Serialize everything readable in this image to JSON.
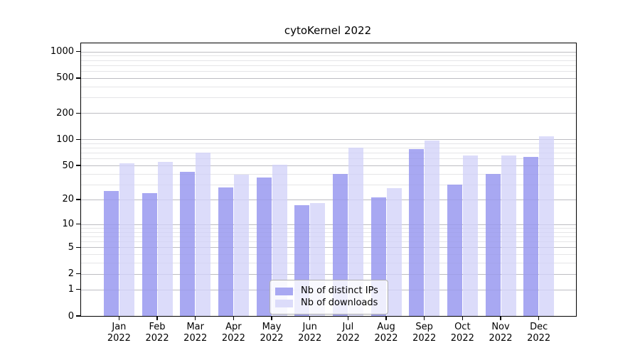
{
  "title": "cytoKernel 2022",
  "year": "2022",
  "legend": {
    "items": [
      {
        "label": "Nb of distinct IPs",
        "color": "#a8a8f2"
      },
      {
        "label": "Nb of downloads",
        "color": "#dcdcfa"
      }
    ]
  },
  "axis": {
    "ytick_labels": [
      "0",
      "1",
      "2",
      "5",
      "10",
      "20",
      "50",
      "100",
      "200",
      "500",
      "1000"
    ],
    "major_grid_color": "#c9c9c9",
    "minor_grid_color": "#ececec",
    "axis_color": "#000000"
  },
  "chart_data": {
    "type": "bar",
    "title": "cytoKernel 2022",
    "categories": [
      "Jan",
      "Feb",
      "Mar",
      "Apr",
      "May",
      "Jun",
      "Jul",
      "Aug",
      "Sep",
      "Oct",
      "Nov",
      "Dec"
    ],
    "category_year": "2022",
    "series": [
      {
        "name": "Nb of distinct IPs",
        "color": "#a8a8f2",
        "values": [
          25,
          24,
          42,
          28,
          36,
          17,
          40,
          21,
          78,
          30,
          40,
          63
        ]
      },
      {
        "name": "Nb of downloads",
        "color": "#dcdcfa",
        "values": [
          53,
          55,
          70,
          39,
          51,
          18,
          80,
          27,
          96,
          65,
          65,
          108
        ]
      }
    ],
    "xlabel": "",
    "ylabel": "",
    "yscale": "log1p",
    "yticks": [
      0,
      1,
      2,
      5,
      10,
      20,
      50,
      100,
      200,
      500,
      1000
    ],
    "yticks_minor": [
      3,
      4,
      6,
      7,
      8,
      9,
      30,
      40,
      60,
      70,
      80,
      90,
      300,
      400,
      600,
      700,
      800,
      900
    ],
    "ylim": [
      0,
      1240
    ],
    "grid": true,
    "legend_position": "lower center"
  }
}
